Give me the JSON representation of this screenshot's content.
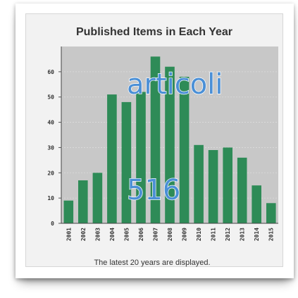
{
  "chart_data": {
    "type": "bar",
    "title": "Published Items in Each Year",
    "categories": [
      "2001",
      "2002",
      "2003",
      "2004",
      "2005",
      "2006",
      "2007",
      "2008",
      "2009",
      "2010",
      "2011",
      "2012",
      "2013",
      "2014",
      "2015"
    ],
    "values": [
      9,
      17,
      20,
      51,
      48,
      52,
      66,
      62,
      58,
      31,
      29,
      30,
      26,
      15,
      8
    ],
    "ylim": [
      0,
      70
    ],
    "yticks": [
      0,
      10,
      20,
      30,
      40,
      50,
      60
    ],
    "grid": true,
    "bar_color": "#2e8b57",
    "plot_background": "#c8c8c8",
    "footnote": "The latest 20 years are displayed."
  },
  "overlay": {
    "label": "articoli",
    "number": "516",
    "color": "#4a8fd6"
  }
}
